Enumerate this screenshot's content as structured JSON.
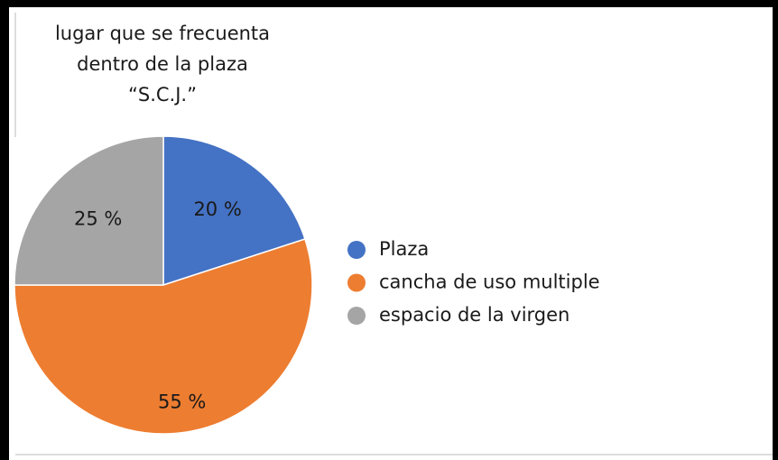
{
  "chart_data": {
    "type": "pie",
    "title": [
      "lugar que se frecuenta",
      "dentro de la plaza",
      "“S.C.J.”"
    ],
    "categories": [
      "Plaza",
      "cancha de uso multiple",
      "espacio de la virgen"
    ],
    "values": [
      20,
      55,
      25
    ],
    "value_labels": [
      "20 %",
      "55 %",
      "25 %"
    ],
    "colors": [
      "#4472c4",
      "#ed7d31",
      "#a5a5a5"
    ],
    "legend": "right"
  }
}
